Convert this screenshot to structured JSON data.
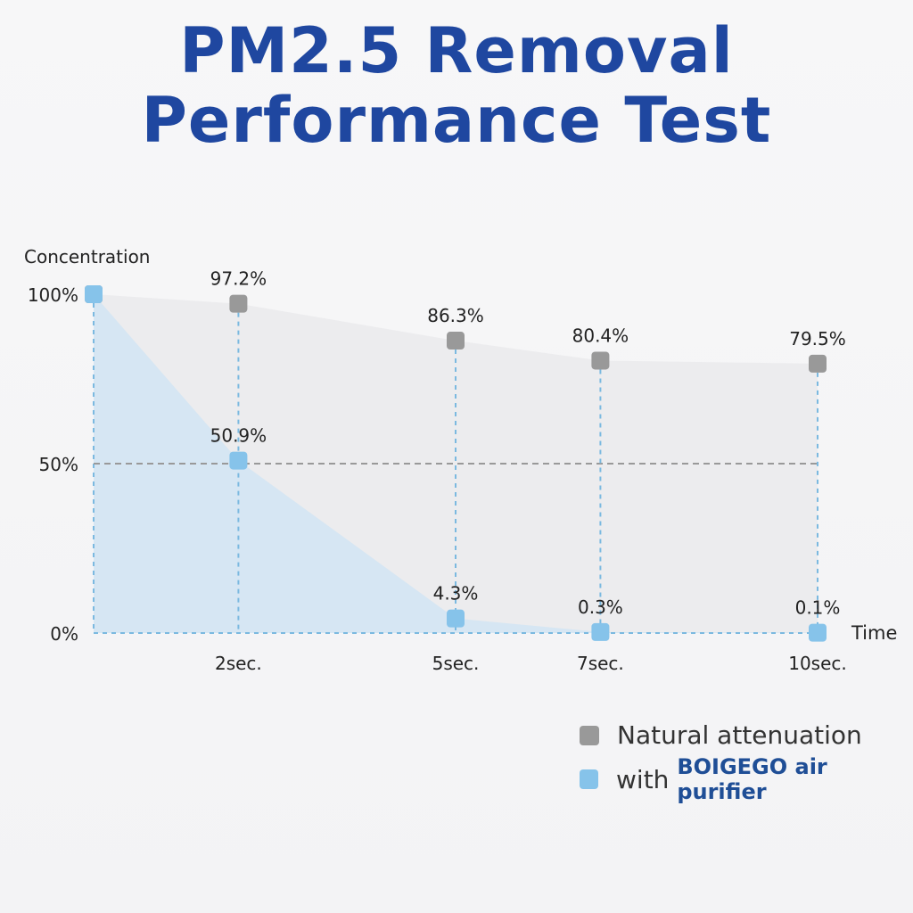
{
  "title_line1": "PM2.5 Removal",
  "title_line2": "Performance Test",
  "chart_data": {
    "type": "area",
    "ylabel": "Concentration",
    "xlabel": "Time",
    "ytick_labels": [
      "100%",
      "50%",
      "0%"
    ],
    "yticks": [
      100,
      50,
      0
    ],
    "ylim": [
      0,
      100
    ],
    "x": [
      0,
      2,
      5,
      7,
      10
    ],
    "xtick_values": [
      2,
      5,
      7,
      10
    ],
    "xtick_labels": [
      "2sec.",
      "5sec.",
      "7sec.",
      "10sec."
    ],
    "series": [
      {
        "name": "Natural attenuation",
        "color": "#999999",
        "values": [
          100,
          97.2,
          86.3,
          80.4,
          79.5
        ],
        "labels": [
          "",
          "97.2%",
          "86.3%",
          "80.4%",
          "79.5%"
        ]
      },
      {
        "name": "with BOIGEGO air purifier",
        "color": "#86c3ea",
        "values": [
          100,
          50.9,
          4.3,
          0.3,
          0.1
        ],
        "labels": [
          "",
          "50.9%",
          "4.3%",
          "0.3%",
          "0.1%"
        ]
      }
    ],
    "reference_line": 50,
    "grid": false,
    "legend_position": "bottom-right"
  },
  "legend": {
    "natural_label": "Natural attenuation",
    "purifier_prefix": "with ",
    "purifier_brand": "BOIGEGO air purifier"
  },
  "colors": {
    "title": "#1f47a0",
    "natural": "#999999",
    "purifier": "#86c3ea",
    "brand": "#1f4e96"
  }
}
